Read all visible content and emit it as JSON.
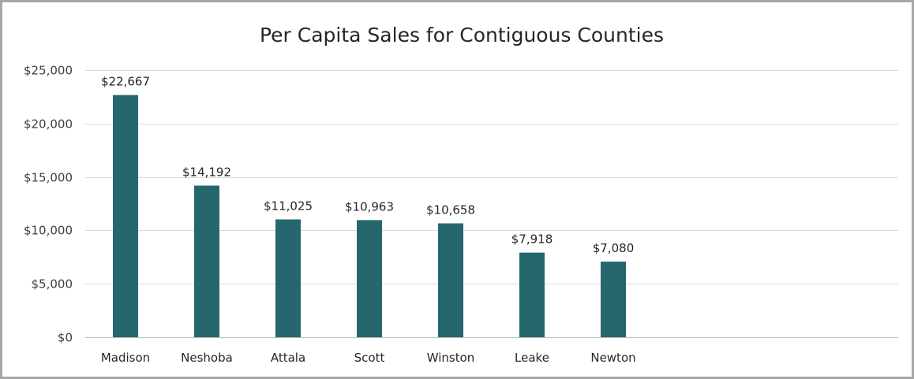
{
  "chart_data": {
    "type": "bar",
    "title": "Per Capita Sales for Contiguous Counties",
    "categories": [
      "Madison",
      "Neshoba",
      "Attala",
      "Scott",
      "Winston",
      "Leake",
      "Newton"
    ],
    "values": [
      22667,
      14192,
      11025,
      10963,
      10658,
      7918,
      7080
    ],
    "data_labels": [
      "$22,667",
      "$14,192",
      "$11,025",
      "$10,963",
      "$10,658",
      "$7,918",
      "$7,080"
    ],
    "y_ticks": [
      0,
      5000,
      10000,
      15000,
      20000,
      25000
    ],
    "y_tick_labels": [
      "$0",
      "$5,000",
      "$10,000",
      "$15,000",
      "$20,000",
      "$25,000"
    ],
    "ylim": [
      0,
      25000
    ],
    "xlabel": "",
    "ylabel": "",
    "grid": true,
    "legend": false,
    "bar_color": "#26676d",
    "grid_color": "#d9d9d9",
    "axis_color": "#bfbfbf"
  }
}
